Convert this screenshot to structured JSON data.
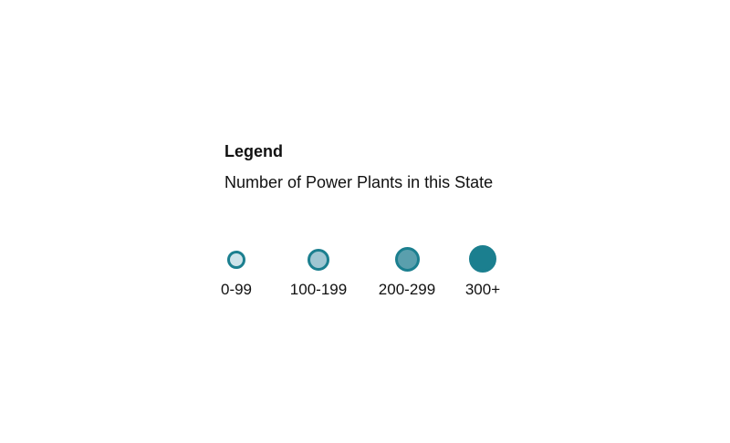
{
  "legend": {
    "title": "Legend",
    "subtitle": "Number of Power Plants in this State",
    "items": [
      {
        "label": "0-99",
        "fill": "#cde3ea",
        "stroke": "#1b7f8f"
      },
      {
        "label": "100-199",
        "fill": "#9fc6d2",
        "stroke": "#1b7f8f"
      },
      {
        "label": "200-299",
        "fill": "#5a9fad",
        "stroke": "#1b7f8f"
      },
      {
        "label": "300+",
        "fill": "#1b7f8f",
        "stroke": "#1b7f8f"
      }
    ]
  }
}
